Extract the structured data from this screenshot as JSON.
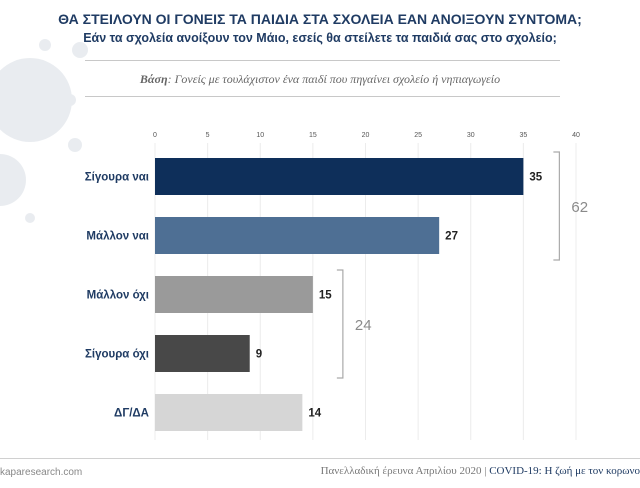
{
  "header": {
    "title": "ΘΑ ΣΤΕΙΛΟΥΝ ΟΙ ΓΟΝΕΙΣ ΤΑ ΠΑΙΔΙΑ ΣΤΑ ΣΧΟΛΕΙΑ ΕΑΝ ΑΝΟΙΞΟΥΝ ΣΥΝΤΟΜΑ;",
    "subtitle": "Εάν τα σχολεία ανοίξουν τον Μάιο, εσείς θα στείλετε τα παιδιά σας στο σχολείο;",
    "base_label": "Βάση",
    "base_text": ": Γονείς με τουλάχιστον ένα παιδί που πηγαίνει σχολείο ή νηπιαγωγείο"
  },
  "chart_data": {
    "type": "bar",
    "orientation": "horizontal",
    "categories": [
      "Σίγουρα ναι",
      "Μάλλον ναι",
      "Μάλλον όχι",
      "Σίγουρα όχι",
      "ΔΓ/ΔΑ"
    ],
    "values": [
      35,
      27,
      15,
      9,
      14
    ],
    "colors": [
      "#0e2f5a",
      "#4e6f94",
      "#9a9a9a",
      "#484848",
      "#d6d6d6"
    ],
    "xlim": [
      0,
      40
    ],
    "ticks": [
      0,
      5,
      10,
      15,
      20,
      25,
      30,
      35,
      40
    ],
    "groups": [
      {
        "label": "62",
        "from": 0,
        "to": 1
      },
      {
        "label": "24",
        "from": 2,
        "to": 3
      }
    ]
  },
  "footer": {
    "source": "kaparesearch.com",
    "survey": "Πανελλαδική έρευνα Απριλίου 2020 | ",
    "highlight": "COVID-19: Η ζωή με τον κορωνο"
  }
}
